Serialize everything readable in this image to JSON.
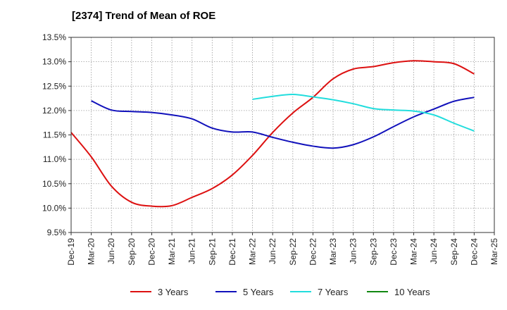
{
  "chart_data": {
    "type": "line",
    "title": "[2374]  Trend of Mean of ROE",
    "x": [
      "Dec-19",
      "Mar-20",
      "Jun-20",
      "Sep-20",
      "Dec-20",
      "Mar-21",
      "Jun-21",
      "Sep-21",
      "Dec-21",
      "Mar-22",
      "Jun-22",
      "Sep-22",
      "Dec-22",
      "Mar-23",
      "Jun-23",
      "Sep-23",
      "Dec-23",
      "Mar-24",
      "Jun-24",
      "Sep-24",
      "Dec-24",
      "Mar-25"
    ],
    "ylim": [
      9.5,
      13.5
    ],
    "yticks": [
      9.5,
      10.0,
      10.5,
      11.0,
      11.5,
      12.0,
      12.5,
      13.0,
      13.5
    ],
    "ytick_labels": [
      "9.5%",
      "10.0%",
      "10.5%",
      "11.0%",
      "11.5%",
      "12.0%",
      "12.5%",
      "13.0%",
      "13.5%"
    ],
    "grid": true,
    "legend_position": "bottom",
    "series": [
      {
        "name": "3 Years",
        "color": "#dd1111",
        "values": [
          11.55,
          11.05,
          10.45,
          10.12,
          10.04,
          10.05,
          10.22,
          10.4,
          10.68,
          11.08,
          11.55,
          11.95,
          12.27,
          12.65,
          12.85,
          12.9,
          12.98,
          13.02,
          13.0,
          12.96,
          12.75,
          null
        ]
      },
      {
        "name": "5 Years",
        "color": "#1111bb",
        "values": [
          null,
          12.2,
          12.01,
          11.98,
          11.96,
          11.91,
          11.83,
          11.64,
          11.56,
          11.56,
          11.45,
          11.35,
          11.27,
          11.23,
          11.3,
          11.46,
          11.67,
          11.87,
          12.03,
          12.19,
          12.27,
          null
        ]
      },
      {
        "name": "7 Years",
        "color": "#22dddd",
        "values": [
          null,
          null,
          null,
          null,
          null,
          null,
          null,
          null,
          null,
          12.23,
          12.29,
          12.33,
          12.28,
          12.22,
          12.14,
          12.04,
          12.01,
          11.99,
          11.91,
          11.74,
          11.58,
          null
        ]
      },
      {
        "name": "10 Years",
        "color": "#118811",
        "values": [
          null,
          null,
          null,
          null,
          null,
          null,
          null,
          null,
          null,
          null,
          null,
          null,
          null,
          null,
          null,
          null,
          null,
          null,
          null,
          null,
          null,
          null
        ]
      }
    ]
  }
}
